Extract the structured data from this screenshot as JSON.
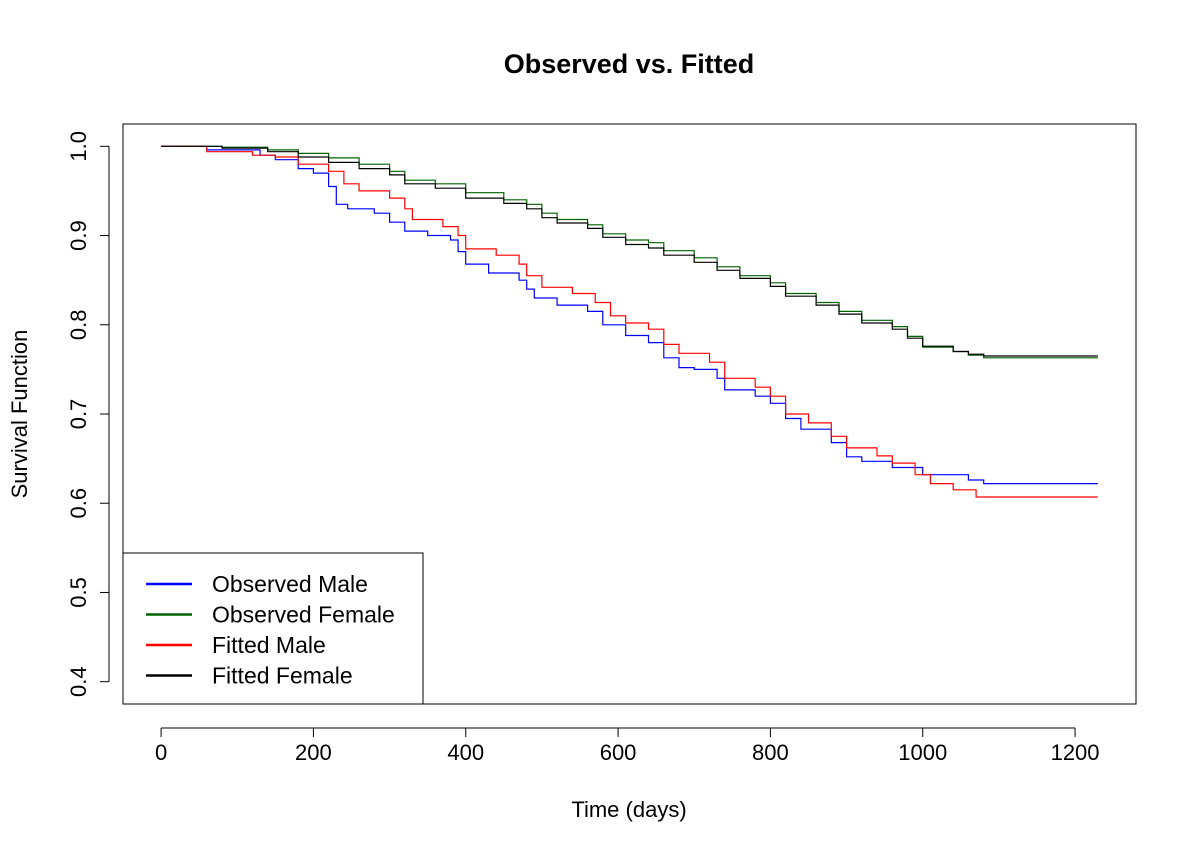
{
  "chart_data": {
    "type": "line",
    "step": true,
    "title": "Observed vs. Fitted",
    "xlabel": "Time (days)",
    "ylabel": "Survival Function",
    "xlim": [
      -50,
      1280
    ],
    "ylim": [
      0.375,
      1.025
    ],
    "x_ticks": [
      "0",
      "200",
      "400",
      "600",
      "800",
      "1000",
      "1200"
    ],
    "y_ticks": [
      "0.4",
      "0.5",
      "0.6",
      "0.7",
      "0.8",
      "0.9",
      "1.0"
    ],
    "grid": false,
    "legend_position": "bottom-left",
    "series": [
      {
        "name": "Observed Male",
        "color": "#0000ff",
        "points": [
          [
            0,
            1.0
          ],
          [
            60,
            0.996
          ],
          [
            130,
            0.99
          ],
          [
            150,
            0.985
          ],
          [
            180,
            0.975
          ],
          [
            200,
            0.97
          ],
          [
            220,
            0.955
          ],
          [
            230,
            0.935
          ],
          [
            245,
            0.93
          ],
          [
            280,
            0.925
          ],
          [
            300,
            0.915
          ],
          [
            320,
            0.905
          ],
          [
            350,
            0.9
          ],
          [
            380,
            0.895
          ],
          [
            390,
            0.882
          ],
          [
            400,
            0.868
          ],
          [
            430,
            0.858
          ],
          [
            470,
            0.85
          ],
          [
            480,
            0.84
          ],
          [
            490,
            0.83
          ],
          [
            520,
            0.822
          ],
          [
            560,
            0.815
          ],
          [
            580,
            0.8
          ],
          [
            610,
            0.788
          ],
          [
            640,
            0.78
          ],
          [
            660,
            0.763
          ],
          [
            680,
            0.752
          ],
          [
            700,
            0.75
          ],
          [
            730,
            0.74
          ],
          [
            740,
            0.727
          ],
          [
            780,
            0.72
          ],
          [
            800,
            0.712
          ],
          [
            820,
            0.695
          ],
          [
            840,
            0.683
          ],
          [
            880,
            0.668
          ],
          [
            900,
            0.652
          ],
          [
            920,
            0.647
          ],
          [
            960,
            0.64
          ],
          [
            1000,
            0.632
          ],
          [
            1060,
            0.626
          ],
          [
            1080,
            0.622
          ],
          [
            1230,
            0.622
          ]
        ]
      },
      {
        "name": "Observed Female",
        "color": "#006400",
        "points": [
          [
            0,
            1.0
          ],
          [
            80,
            0.999
          ],
          [
            140,
            0.996
          ],
          [
            180,
            0.992
          ],
          [
            220,
            0.987
          ],
          [
            260,
            0.98
          ],
          [
            300,
            0.972
          ],
          [
            320,
            0.962
          ],
          [
            360,
            0.958
          ],
          [
            400,
            0.948
          ],
          [
            450,
            0.94
          ],
          [
            480,
            0.935
          ],
          [
            500,
            0.925
          ],
          [
            520,
            0.918
          ],
          [
            560,
            0.912
          ],
          [
            580,
            0.902
          ],
          [
            610,
            0.895
          ],
          [
            640,
            0.892
          ],
          [
            660,
            0.883
          ],
          [
            700,
            0.875
          ],
          [
            730,
            0.865
          ],
          [
            760,
            0.855
          ],
          [
            800,
            0.847
          ],
          [
            820,
            0.835
          ],
          [
            860,
            0.825
          ],
          [
            890,
            0.815
          ],
          [
            920,
            0.805
          ],
          [
            960,
            0.798
          ],
          [
            980,
            0.787
          ],
          [
            1000,
            0.775
          ],
          [
            1040,
            0.77
          ],
          [
            1060,
            0.766
          ],
          [
            1080,
            0.763
          ],
          [
            1230,
            0.763
          ]
        ]
      },
      {
        "name": "Fitted Male",
        "color": "#ff0000",
        "points": [
          [
            0,
            1.0
          ],
          [
            60,
            0.994
          ],
          [
            120,
            0.99
          ],
          [
            150,
            0.988
          ],
          [
            180,
            0.98
          ],
          [
            220,
            0.972
          ],
          [
            240,
            0.958
          ],
          [
            260,
            0.95
          ],
          [
            300,
            0.942
          ],
          [
            320,
            0.93
          ],
          [
            330,
            0.918
          ],
          [
            370,
            0.91
          ],
          [
            390,
            0.9
          ],
          [
            400,
            0.885
          ],
          [
            440,
            0.878
          ],
          [
            470,
            0.868
          ],
          [
            480,
            0.855
          ],
          [
            500,
            0.842
          ],
          [
            540,
            0.835
          ],
          [
            570,
            0.825
          ],
          [
            590,
            0.81
          ],
          [
            610,
            0.802
          ],
          [
            640,
            0.795
          ],
          [
            660,
            0.778
          ],
          [
            680,
            0.768
          ],
          [
            720,
            0.758
          ],
          [
            740,
            0.74
          ],
          [
            780,
            0.73
          ],
          [
            800,
            0.72
          ],
          [
            820,
            0.7
          ],
          [
            850,
            0.69
          ],
          [
            880,
            0.675
          ],
          [
            900,
            0.662
          ],
          [
            940,
            0.653
          ],
          [
            960,
            0.645
          ],
          [
            990,
            0.632
          ],
          [
            1010,
            0.622
          ],
          [
            1040,
            0.615
          ],
          [
            1070,
            0.607
          ],
          [
            1230,
            0.607
          ]
        ]
      },
      {
        "name": "Fitted Female",
        "color": "#000000",
        "points": [
          [
            0,
            1.0
          ],
          [
            80,
            0.998
          ],
          [
            140,
            0.994
          ],
          [
            180,
            0.988
          ],
          [
            220,
            0.982
          ],
          [
            260,
            0.975
          ],
          [
            300,
            0.968
          ],
          [
            320,
            0.958
          ],
          [
            360,
            0.953
          ],
          [
            400,
            0.942
          ],
          [
            450,
            0.936
          ],
          [
            480,
            0.93
          ],
          [
            500,
            0.92
          ],
          [
            520,
            0.914
          ],
          [
            560,
            0.908
          ],
          [
            580,
            0.898
          ],
          [
            610,
            0.89
          ],
          [
            640,
            0.886
          ],
          [
            660,
            0.878
          ],
          [
            700,
            0.87
          ],
          [
            730,
            0.861
          ],
          [
            760,
            0.852
          ],
          [
            800,
            0.843
          ],
          [
            820,
            0.832
          ],
          [
            860,
            0.822
          ],
          [
            890,
            0.812
          ],
          [
            920,
            0.802
          ],
          [
            960,
            0.795
          ],
          [
            980,
            0.785
          ],
          [
            1000,
            0.776
          ],
          [
            1040,
            0.77
          ],
          [
            1060,
            0.767
          ],
          [
            1080,
            0.765
          ],
          [
            1230,
            0.765
          ]
        ]
      }
    ]
  }
}
